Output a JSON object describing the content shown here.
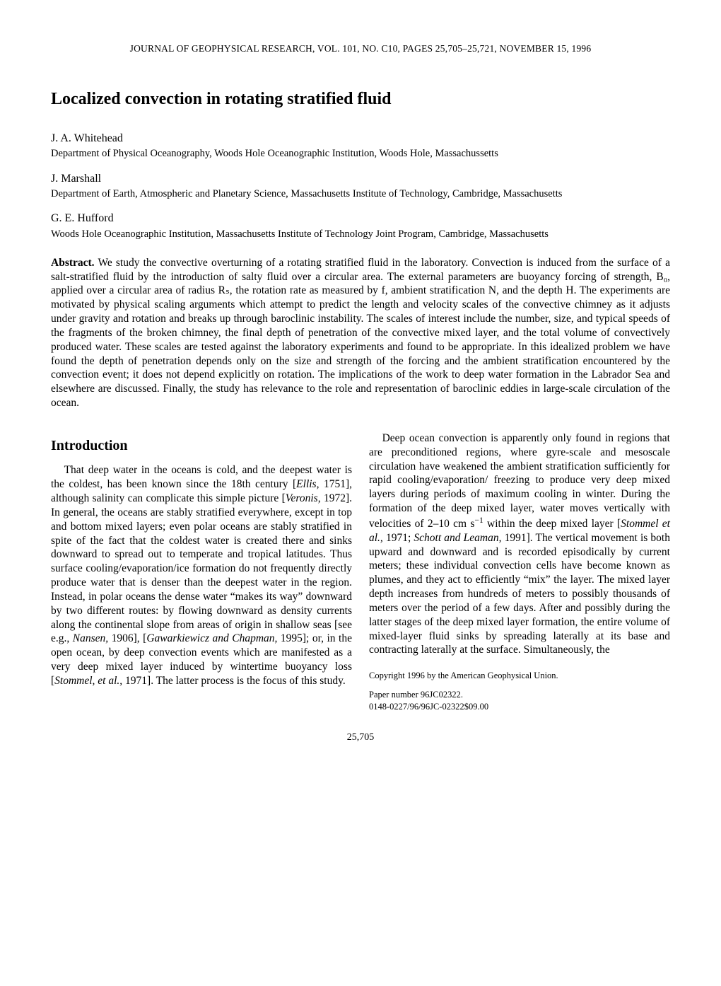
{
  "running_head": "JOURNAL OF GEOPHYSICAL RESEARCH, VOL. 101, NO. C10, PAGES 25,705–25,721, NOVEMBER 15, 1996",
  "title": "Localized convection in rotating stratified fluid",
  "authors": [
    {
      "name": "J. A. Whitehead",
      "affil": "Department of Physical Oceanography, Woods Hole Oceanographic Institution, Woods Hole, Massachussetts"
    },
    {
      "name": "J. Marshall",
      "affil": "Department of Earth, Atmospheric and Planetary Science, Massachusetts Institute of Technology, Cambridge, Massachusetts"
    },
    {
      "name": "G. E. Hufford",
      "affil": "Woods Hole Oceanographic Institution, Massachusetts Institute of Technology Joint Program, Cambridge, Massachusetts"
    }
  ],
  "abstract_label": "Abstract.",
  "abstract_body": "We study the convective overturning of a rotating stratified fluid in the laboratory. Convection is induced from the surface of a salt-stratified fluid by the introduction of salty fluid over a circular area. The external parameters are buoyancy forcing of strength, B₀, applied over a circular area of radius Rₛ, the rotation rate as measured by f, ambient stratification N, and the depth H. The experiments are motivated by physical scaling arguments which attempt to predict the length and velocity scales of the convective chimney as it adjusts under gravity and rotation and breaks up through baroclinic instability. The scales of interest include the number, size, and typical speeds of the fragments of the broken chimney, the final depth of penetration of the convective mixed layer, and the total volume of convectively produced water. These scales are tested against the laboratory experiments and found to be appropriate. In this idealized problem we have found the depth of penetration depends only on the size and strength of the forcing and the ambient stratification encountered by the convection event; it does not depend explicitly on rotation. The implications of the work to deep water formation in the Labrador Sea and elsewhere are discussed. Finally, the study has relevance to the role and representation of baroclinic eddies in large-scale circulation of the ocean.",
  "section_intro": "Introduction",
  "intro_para1_a": "That deep water in the oceans is cold, and the deepest water is the coldest, has been known since the 18th century [",
  "intro_para1_cite1": "Ellis,",
  "intro_para1_b": " 1751], although salinity can complicate this simple picture [",
  "intro_para1_cite2": "Veronis,",
  "intro_para1_c": " 1972]. In general, the oceans are stably stratified everywhere, except in top and bottom mixed layers; even polar oceans are stably stratified in spite of the fact that the coldest water is created there and sinks downward to spread out to temperate and tropical latitudes. Thus surface cooling/evaporation/ice formation do not frequently directly produce water that is denser than the deepest water in the region. Instead, in polar oceans the dense water “makes its way” downward by two different routes: by flowing downward as density currents along the continental slope from areas of origin in shallow seas [see e.g., ",
  "intro_para1_cite3": "Nansen,",
  "intro_para1_d": " 1906], [",
  "intro_para1_cite4": "Gawarkiewicz and Chapman,",
  "intro_para1_e": " 1995]; or, in the open ocean, by deep convection events which are manifested as a very deep mixed layer induced by wintertime buoyancy loss [",
  "intro_para1_cite5": "Stommel, et al.,",
  "intro_para1_f": " 1971]. The latter process is the focus of this study.",
  "intro_para2_a": "Deep ocean convection is apparently only found in regions that are preconditioned regions, where gyre-scale and mesoscale circulation have weakened the ambient stratification sufficiently for rapid cooling/evaporation/ freezing to produce very deep mixed layers during periods of maximum cooling in winter. During the formation of the deep mixed layer, water moves vertically with velocities of 2–10 cm s",
  "intro_para2_sup": "−1",
  "intro_para2_b": " within the deep mixed layer [",
  "intro_para2_cite1": "Stommel et al.,",
  "intro_para2_c": " 1971; ",
  "intro_para2_cite2": "Schott and Leaman,",
  "intro_para2_d": " 1991]. The vertical movement is both upward and downward and is recorded episodically by current meters; these individual convection cells have become known as plumes, and they act to efficiently “mix” the layer. The mixed layer depth increases from hundreds of meters to possibly thousands of meters over the period of a few days. After and possibly during the latter stages of the deep mixed layer formation, the entire volume of mixed-layer fluid sinks by spreading laterally at its base and contracting laterally at the surface. Simultaneously, the",
  "copyright": "Copyright 1996 by the American Geophysical Union.",
  "paper_number": "Paper number 96JC02322.",
  "issn_line": "0148-0227/96/96JC-02322$09.00",
  "page_number": "25,705"
}
